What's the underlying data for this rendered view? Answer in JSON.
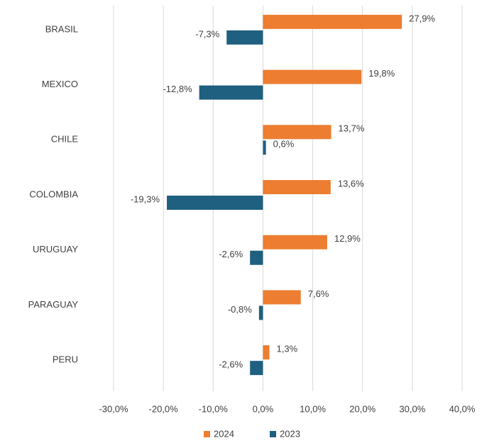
{
  "chart_data": {
    "type": "bar",
    "orientation": "horizontal",
    "categories": [
      "BRASIL",
      "MEXICO",
      "CHILE",
      "COLOMBIA",
      "URUGUAY",
      "PARAGUAY",
      "PERU"
    ],
    "series": [
      {
        "name": "2024",
        "color": "#ed7d31",
        "values": [
          27.9,
          19.8,
          13.7,
          13.6,
          12.9,
          7.6,
          1.3
        ],
        "value_labels": [
          "27,9%",
          "19,8%",
          "13,7%",
          "13,6%",
          "12,9%",
          "7,6%",
          "1,3%"
        ]
      },
      {
        "name": "2023",
        "color": "#1f5f7f",
        "values": [
          -7.3,
          -12.8,
          0.6,
          -19.3,
          -2.6,
          -0.8,
          -2.6
        ],
        "value_labels": [
          "-7,3%",
          "-12,8%",
          "0,6%",
          "-19,3%",
          "-2,6%",
          "-0,8%",
          "-2,6%"
        ]
      }
    ],
    "xlim": [
      -30,
      40
    ],
    "xticks": [
      {
        "value": -30,
        "label": "-30,0%"
      },
      {
        "value": -20,
        "label": "-20,0%"
      },
      {
        "value": -10,
        "label": "-10,0%"
      },
      {
        "value": 0,
        "label": "0,0%"
      },
      {
        "value": 10,
        "label": "10,0%"
      },
      {
        "value": 20,
        "label": "20,0%"
      },
      {
        "value": 30,
        "label": "30,0%"
      },
      {
        "value": 40,
        "label": "40,0%"
      }
    ],
    "grid": true,
    "legend": "bottom"
  }
}
